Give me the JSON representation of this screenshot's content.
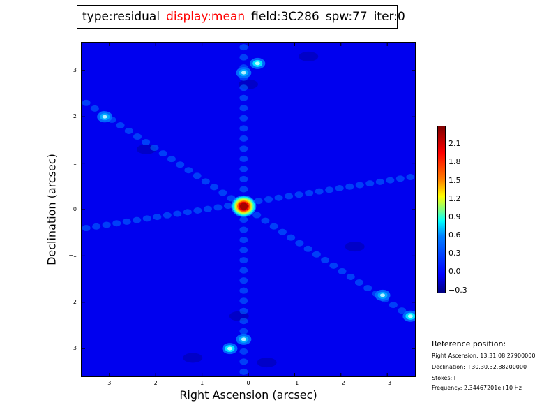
{
  "title": {
    "type": "type:residual",
    "display": "display:mean",
    "field": "field:3C286",
    "spw": "spw:77",
    "iter": "iter:0",
    "display_color": "#ff0000"
  },
  "colormap": "jet",
  "chart_data": {
    "type": "heatmap",
    "title": "type:residual  display:mean  field:3C286  spw:77  iter:0",
    "xlabel": "Right Ascension (arcsec)",
    "ylabel": "Declination (arcsec)",
    "xlim": [
      3.6,
      -3.6
    ],
    "ylim": [
      -3.6,
      3.6
    ],
    "x_ticks": [
      3,
      2,
      1,
      0,
      -1,
      -2,
      -3
    ],
    "x_tick_labels": [
      "3",
      "2",
      "1",
      "0",
      "−1",
      "−2",
      "−3"
    ],
    "y_ticks": [
      3,
      2,
      1,
      0,
      -1,
      -2,
      -3
    ],
    "y_tick_labels": [
      "3",
      "2",
      "1",
      "0",
      "−1",
      "−2",
      "−3"
    ],
    "colorbar": {
      "vmin": -0.35,
      "vmax": 2.4,
      "ticks": [
        2.1,
        1.8,
        1.5,
        1.2,
        0.9,
        0.6,
        0.3,
        0.0,
        -0.3
      ],
      "tick_labels": [
        "2.1",
        "1.8",
        "1.5",
        "1.2",
        "0.9",
        "0.6",
        "0.3",
        "0.0",
        "−0.3"
      ]
    },
    "peak": {
      "x": 0.1,
      "y": 0.07,
      "value": 2.3
    },
    "background_value": -0.05,
    "bright_spots": [
      {
        "x": -0.2,
        "y": 3.15,
        "value": 0.6
      },
      {
        "x": 0.1,
        "y": 2.95,
        "value": 0.45
      },
      {
        "x": 3.1,
        "y": 2.0,
        "value": 0.45
      },
      {
        "x": 0.4,
        "y": -3.0,
        "value": 0.6
      },
      {
        "x": 0.1,
        "y": -2.8,
        "value": 0.45
      },
      {
        "x": -3.5,
        "y": -2.3,
        "value": 0.6
      },
      {
        "x": -2.9,
        "y": -1.85,
        "value": 0.45
      }
    ],
    "ridges": [
      {
        "from": [
          3.5,
          2.3
        ],
        "to": [
          -3.5,
          -2.3
        ],
        "value": 0.3
      },
      {
        "from": [
          3.5,
          -0.4
        ],
        "to": [
          -3.5,
          0.7
        ],
        "value": 0.3
      },
      {
        "from": [
          0.1,
          3.5
        ],
        "to": [
          0.1,
          -3.5
        ],
        "value": 0.3
      }
    ]
  },
  "reference": {
    "heading": "Reference position:",
    "ra": "Right Ascension: 13:31:08.27900000",
    "dec": "Declination: +30.30.32.88200000",
    "stokes": "Stokes: I",
    "frequency": "Frequency: 2.34467201e+10 Hz"
  }
}
